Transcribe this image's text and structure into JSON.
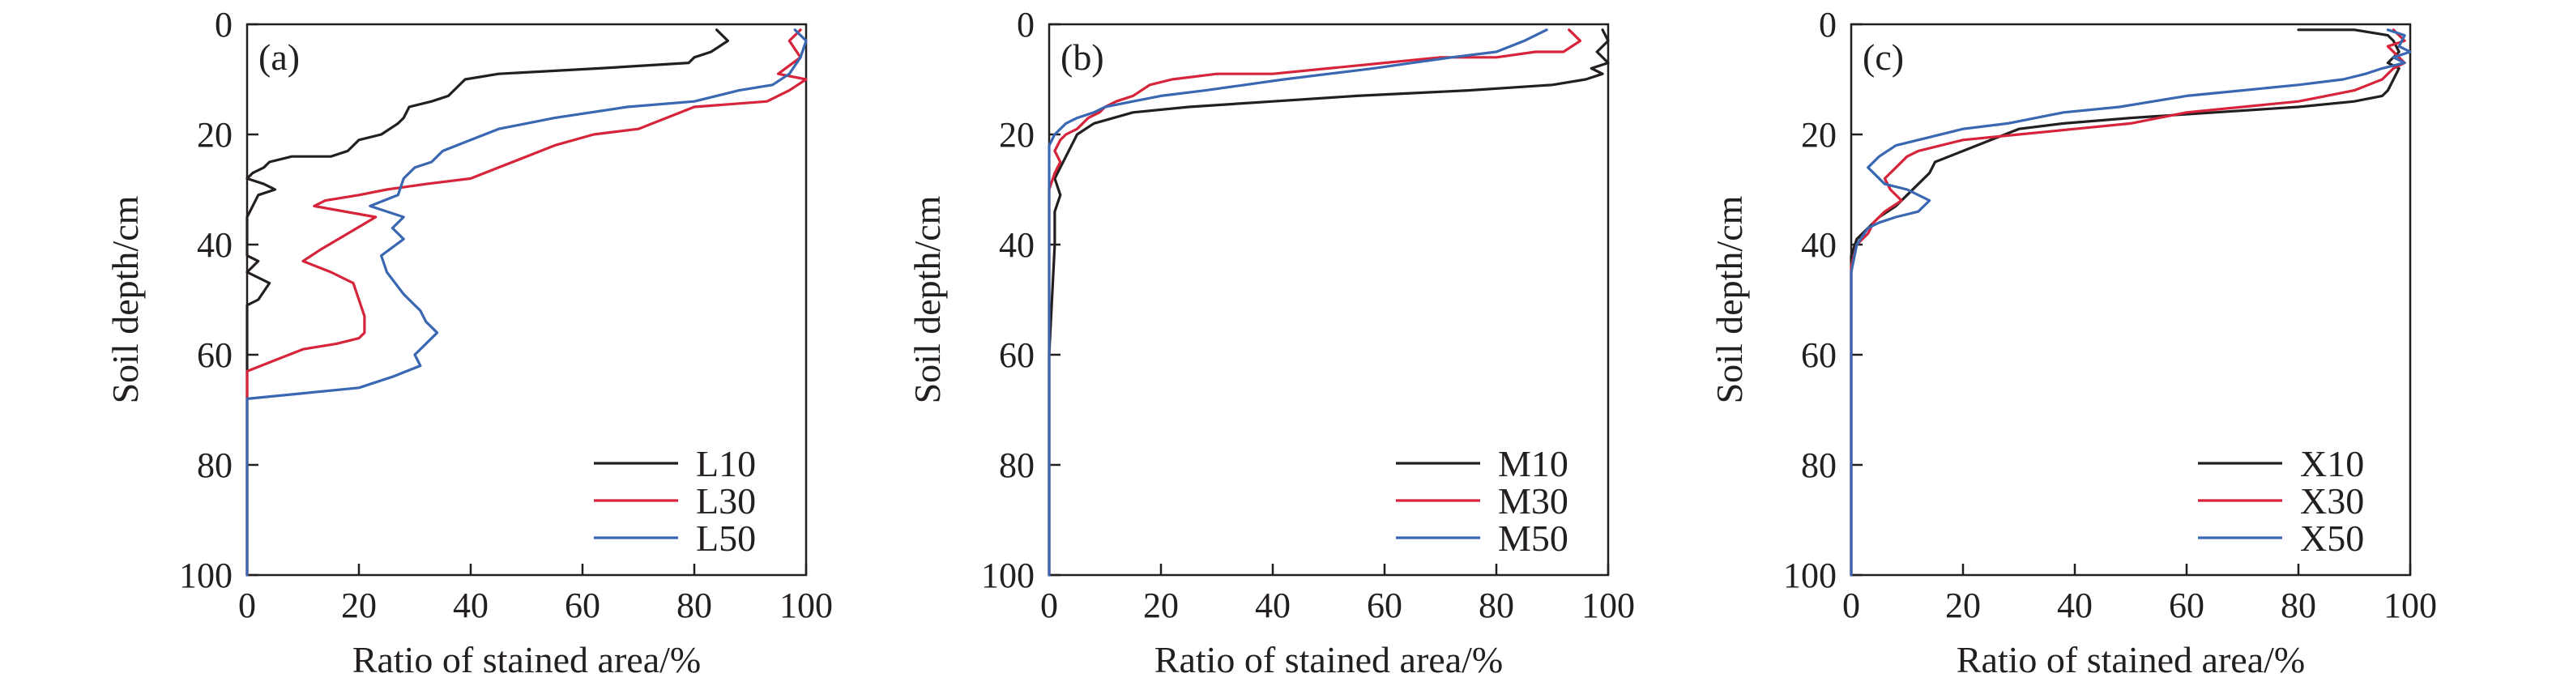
{
  "colors": {
    "black": "#231f20",
    "red": "#d6243a",
    "blue": "#3a67b1"
  },
  "chart_data": [
    {
      "type": "line",
      "panel_label": "(a)",
      "xlabel": "Ratio of stained area/%",
      "ylabel": "Soil depth/cm",
      "xlim": [
        0,
        100
      ],
      "ylim": [
        0,
        100
      ],
      "y_inverted": true,
      "xticks": [
        "0",
        "20",
        "40",
        "60",
        "80",
        "100"
      ],
      "yticks": [
        "0",
        "20",
        "40",
        "60",
        "80",
        "100"
      ],
      "legend_position": "bottom-right",
      "series": [
        {
          "name": "L10",
          "color": "#231f20",
          "x": [
            84,
            86,
            83,
            80,
            79,
            63,
            45,
            39,
            36,
            33,
            29,
            28,
            27,
            24,
            20,
            19,
            18,
            15,
            11,
            8,
            4,
            3,
            1,
            0,
            3,
            5,
            2,
            0,
            0,
            0,
            2,
            0,
            4,
            2,
            0,
            0,
            0,
            0,
            0
          ],
          "y": [
            1,
            3,
            5,
            6,
            7,
            8,
            9,
            10,
            13,
            14,
            15,
            17,
            18,
            20,
            21,
            22,
            23,
            24,
            24,
            24,
            25,
            26,
            27,
            28,
            29,
            30,
            31,
            35,
            40,
            42,
            43,
            45,
            47,
            50,
            51,
            60,
            70,
            80,
            100
          ]
        },
        {
          "name": "L30",
          "color": "#d6243a",
          "x": [
            99,
            97,
            99,
            95,
            100,
            97,
            93,
            80,
            75,
            70,
            62,
            55,
            50,
            45,
            40,
            32,
            25,
            20,
            14,
            12,
            23,
            18,
            13,
            10,
            15,
            19,
            20,
            21,
            21,
            20,
            16,
            10,
            5,
            0,
            0,
            0
          ],
          "y": [
            1,
            3,
            6,
            9,
            10,
            12,
            14,
            15,
            17,
            19,
            20,
            22,
            24,
            26,
            28,
            29,
            30,
            31,
            32,
            33,
            35,
            38,
            41,
            43,
            45,
            47,
            50,
            53,
            56,
            57,
            58,
            59,
            61,
            63,
            70,
            100
          ]
        },
        {
          "name": "L50",
          "color": "#3a67b1",
          "x": [
            98,
            100,
            99,
            97,
            94,
            88,
            80,
            68,
            55,
            45,
            40,
            35,
            33,
            30,
            28,
            27,
            22,
            28,
            26,
            28,
            24,
            25,
            28,
            31,
            32,
            34,
            32,
            30,
            31,
            26,
            20,
            10,
            0,
            0,
            0,
            0
          ],
          "y": [
            1,
            3,
            6,
            9,
            11,
            12,
            14,
            15,
            17,
            19,
            21,
            23,
            25,
            26,
            28,
            31,
            33,
            35,
            37,
            39,
            42,
            45,
            49,
            52,
            54,
            56,
            58,
            60,
            62,
            64,
            66,
            67,
            68,
            70,
            80,
            100
          ]
        }
      ]
    },
    {
      "type": "line",
      "panel_label": "(b)",
      "xlabel": "Ratio of stained area/%",
      "ylabel": "Soil depth/cm",
      "xlim": [
        0,
        100
      ],
      "ylim": [
        0,
        100
      ],
      "y_inverted": true,
      "xticks": [
        "0",
        "20",
        "40",
        "60",
        "80",
        "100"
      ],
      "yticks": [
        "0",
        "20",
        "40",
        "60",
        "80",
        "100"
      ],
      "legend_position": "bottom-right",
      "series": [
        {
          "name": "M10",
          "color": "#231f20",
          "x": [
            99,
            100,
            98,
            100,
            97,
            99,
            96,
            90,
            75,
            55,
            40,
            25,
            15,
            8,
            5,
            4,
            3,
            2,
            1,
            2,
            1,
            1,
            0,
            0,
            0
          ],
          "y": [
            1,
            3,
            5,
            7,
            8,
            9,
            10,
            11,
            12,
            13,
            14,
            15,
            16,
            18,
            20,
            22,
            24,
            26,
            28,
            31,
            34,
            40,
            60,
            80,
            100
          ]
        },
        {
          "name": "M30",
          "color": "#d6243a",
          "x": [
            93,
            95,
            92,
            87,
            80,
            70,
            60,
            50,
            40,
            30,
            22,
            18,
            15,
            12,
            10,
            9,
            7,
            5,
            3,
            2,
            1,
            2,
            1,
            0,
            0,
            0
          ],
          "y": [
            1,
            3,
            5,
            5,
            6,
            6,
            7,
            8,
            9,
            9,
            10,
            11,
            13,
            14,
            15,
            16,
            17,
            19,
            20,
            21,
            23,
            25,
            27,
            30,
            60,
            100
          ]
        },
        {
          "name": "M50",
          "color": "#3a67b1",
          "x": [
            89,
            85,
            80,
            72,
            65,
            58,
            50,
            42,
            35,
            28,
            20,
            15,
            10,
            8,
            5,
            3,
            2,
            1,
            0,
            0,
            0
          ],
          "y": [
            1,
            3,
            5,
            6,
            7,
            8,
            9,
            10,
            11,
            12,
            13,
            14,
            15,
            16,
            17,
            18,
            19,
            20,
            22,
            40,
            100
          ]
        }
      ]
    },
    {
      "type": "line",
      "panel_label": "(c)",
      "xlabel": "Ratio of stained area/%",
      "ylabel": "Soil depth/cm",
      "xlim": [
        0,
        100
      ],
      "ylim": [
        0,
        100
      ],
      "y_inverted": true,
      "xticks": [
        "0",
        "20",
        "40",
        "60",
        "80",
        "100"
      ],
      "yticks": [
        "0",
        "20",
        "40",
        "60",
        "80",
        "100"
      ],
      "legend_position": "bottom-right",
      "series": [
        {
          "name": "X10",
          "color": "#231f20",
          "x": [
            80,
            90,
            96,
            97,
            98,
            96,
            98,
            97,
            96,
            95,
            90,
            80,
            65,
            50,
            38,
            30,
            25,
            20,
            15,
            14,
            12,
            10,
            8,
            5,
            3,
            1,
            0,
            0,
            0
          ],
          "y": [
            1,
            1,
            2,
            3,
            5,
            7,
            8,
            10,
            12,
            13,
            14,
            15,
            16,
            17,
            18,
            19,
            21,
            23,
            25,
            27,
            29,
            31,
            33,
            35,
            37,
            39,
            42,
            60,
            100
          ]
        },
        {
          "name": "X30",
          "color": "#d6243a",
          "x": [
            97,
            99,
            96,
            98,
            99,
            97,
            95,
            90,
            85,
            80,
            70,
            60,
            50,
            40,
            30,
            20,
            12,
            10,
            8,
            6,
            7,
            9,
            6,
            4,
            3,
            1,
            0,
            0,
            0
          ],
          "y": [
            1,
            3,
            4,
            6,
            7,
            8,
            10,
            12,
            13,
            14,
            15,
            16,
            18,
            19,
            20,
            21,
            23,
            24,
            26,
            28,
            30,
            32,
            34,
            36,
            38,
            40,
            44,
            60,
            100
          ]
        },
        {
          "name": "X50",
          "color": "#3a67b1",
          "x": [
            96,
            99,
            98,
            100,
            97,
            99,
            95,
            92,
            88,
            80,
            70,
            60,
            48,
            38,
            28,
            20,
            12,
            8,
            5,
            3,
            6,
            10,
            14,
            12,
            8,
            5,
            3,
            1,
            0,
            0
          ],
          "y": [
            1,
            2,
            4,
            5,
            6,
            7,
            8,
            9,
            10,
            11,
            12,
            13,
            15,
            16,
            18,
            19,
            21,
            22,
            24,
            26,
            29,
            30,
            32,
            34,
            35,
            36,
            37,
            40,
            45,
            100
          ]
        }
      ]
    }
  ]
}
